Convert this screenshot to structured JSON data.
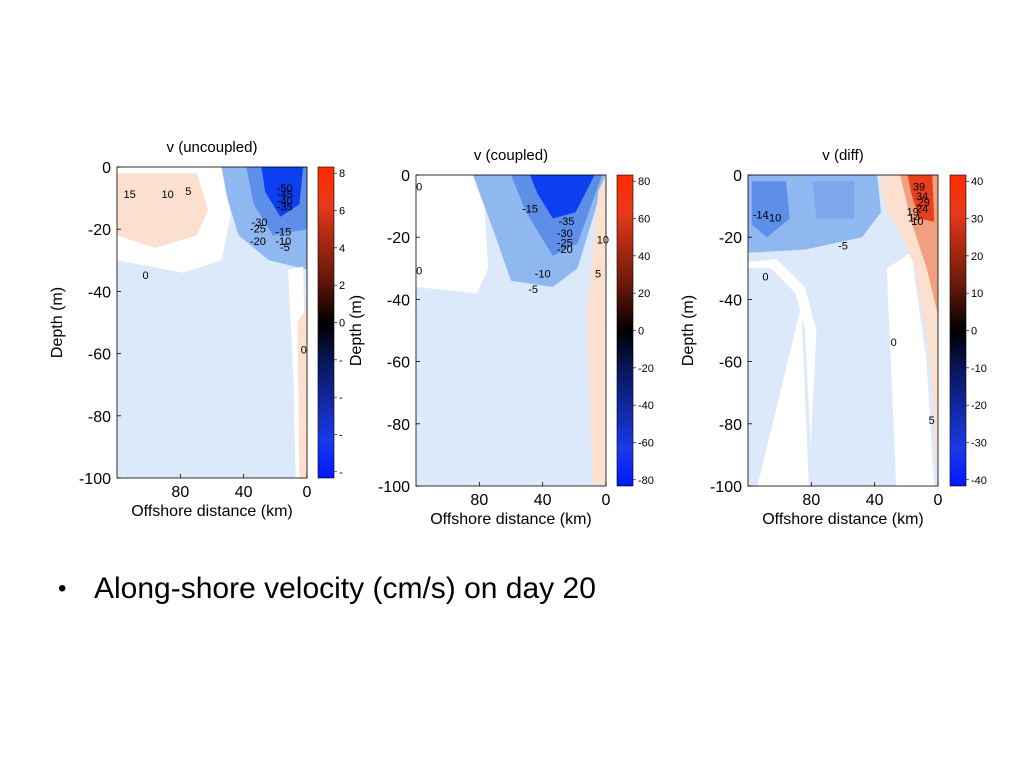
{
  "bullet": {
    "symbol": "•",
    "text": "Along-shore velocity (cm/s) on day 20"
  },
  "colors": {
    "strong_negative": "#0b3ff0",
    "mid_negative": "#8fb8f0",
    "weak_negative": "#dce9fa",
    "zero": "#ffffff",
    "weak_positive": "#fbe0cf",
    "strong_positive": "#e8401c"
  },
  "chart_data": [
    {
      "type": "heatmap",
      "title": "v (uncoupled)",
      "xlabel": "Offshore distance (km)",
      "ylabel": "Depth (m)",
      "x_ticks": [
        "80",
        "40",
        "0"
      ],
      "y_ticks": [
        "0",
        "-20",
        "-40",
        "-60",
        "-80",
        "-100"
      ],
      "xlim": [
        120,
        0
      ],
      "ylim": [
        -100,
        0
      ],
      "colorbar_ticks": [
        "8",
        "6",
        "4",
        "2",
        "0",
        "-",
        "-",
        "-",
        "-"
      ],
      "contour_labels": [
        {
          "text": "15",
          "x": 112,
          "y": -10
        },
        {
          "text": "10",
          "x": 88,
          "y": -10
        },
        {
          "text": "5",
          "x": 75,
          "y": -9
        },
        {
          "text": "0",
          "x": 102,
          "y": -36
        },
        {
          "text": "-50",
          "x": 14,
          "y": -8
        },
        {
          "text": "-45",
          "x": 14,
          "y": -10
        },
        {
          "text": "-40",
          "x": 14,
          "y": -12
        },
        {
          "text": "-35",
          "x": 14,
          "y": -14
        },
        {
          "text": "-30",
          "x": 30,
          "y": -19
        },
        {
          "text": "-25",
          "x": 31,
          "y": -21
        },
        {
          "text": "-20",
          "x": 31,
          "y": -25
        },
        {
          "text": "-15",
          "x": 15,
          "y": -22
        },
        {
          "text": "-10",
          "x": 15,
          "y": -25
        },
        {
          "text": "-5",
          "x": 14,
          "y": -27
        },
        {
          "text": "0",
          "x": 2,
          "y": -60
        }
      ]
    },
    {
      "type": "heatmap",
      "title": "v (coupled)",
      "xlabel": "Offshore distance (km)",
      "ylabel": "Depth (m)",
      "x_ticks": [
        "80",
        "40",
        "0"
      ],
      "y_ticks": [
        "0",
        "-20",
        "-40",
        "-60",
        "-80",
        "-100"
      ],
      "xlim": [
        120,
        0
      ],
      "ylim": [
        -100,
        0
      ],
      "colorbar_ticks": [
        "80",
        "60",
        "40",
        "20",
        "0",
        "-20",
        "-40",
        "-60",
        "-80"
      ],
      "contour_labels": [
        {
          "text": "0",
          "x": 118,
          "y": -5
        },
        {
          "text": "-15",
          "x": 48,
          "y": -12
        },
        {
          "text": "-35",
          "x": 25,
          "y": -16
        },
        {
          "text": "-30",
          "x": 26,
          "y": -20
        },
        {
          "text": "-25",
          "x": 26,
          "y": -23
        },
        {
          "text": "-20",
          "x": 26,
          "y": -25
        },
        {
          "text": "10",
          "x": 2,
          "y": -22
        },
        {
          "text": "0",
          "x": 118,
          "y": -32
        },
        {
          "text": "-10",
          "x": 40,
          "y": -33
        },
        {
          "text": "5",
          "x": 5,
          "y": -33
        },
        {
          "text": "-5",
          "x": 46,
          "y": -38
        }
      ]
    },
    {
      "type": "heatmap",
      "title": "v (diff)",
      "xlabel": "Offshore distance (km)",
      "ylabel": "Depth (m)",
      "x_ticks": [
        "80",
        "40",
        "0"
      ],
      "y_ticks": [
        "0",
        "-20",
        "-40",
        "-60",
        "-80",
        "-100"
      ],
      "xlim": [
        120,
        0
      ],
      "ylim": [
        -100,
        0
      ],
      "colorbar_ticks": [
        "40",
        "30",
        "20",
        "10",
        "0",
        "-10",
        "-20",
        "-30",
        "-40"
      ],
      "contour_labels": [
        {
          "text": "39",
          "x": 12,
          "y": -5
        },
        {
          "text": "34",
          "x": 10,
          "y": -8
        },
        {
          "text": "29",
          "x": 9,
          "y": -10
        },
        {
          "text": "24",
          "x": 10,
          "y": -12
        },
        {
          "text": "19",
          "x": 16,
          "y": -13
        },
        {
          "text": "14",
          "x": 15,
          "y": -15
        },
        {
          "text": "10",
          "x": 13,
          "y": -16
        },
        {
          "text": "-14",
          "x": 112,
          "y": -14
        },
        {
          "text": "-10",
          "x": 104,
          "y": -15
        },
        {
          "text": "-5",
          "x": 60,
          "y": -24
        },
        {
          "text": "0",
          "x": 109,
          "y": -34
        },
        {
          "text": "0",
          "x": 28,
          "y": -55
        },
        {
          "text": "5",
          "x": 4,
          "y": -80
        }
      ]
    }
  ]
}
